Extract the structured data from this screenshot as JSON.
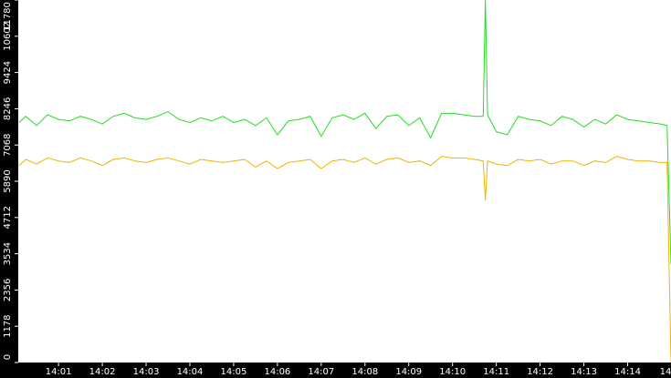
{
  "chart_data": {
    "type": "line",
    "x": [
      0.1,
      0.25,
      0.5,
      0.75,
      1,
      1.25,
      1.5,
      1.75,
      2,
      2.25,
      2.5,
      2.75,
      3,
      3.25,
      3.5,
      3.75,
      4,
      4.25,
      4.5,
      4.75,
      5,
      5.25,
      5.5,
      5.75,
      6,
      6.25,
      6.5,
      6.75,
      7,
      7.25,
      7.5,
      7.75,
      8,
      8.25,
      8.5,
      8.75,
      9,
      9.25,
      9.5,
      9.75,
      10,
      10.25,
      10.5,
      10.7,
      10.75,
      10.8,
      11,
      11.25,
      11.5,
      11.75,
      12,
      12.25,
      12.5,
      12.75,
      13,
      13.25,
      13.5,
      13.75,
      14,
      14.25,
      14.5,
      14.75,
      14.9,
      14.99
    ],
    "xlim": [
      0.08,
      14.99
    ],
    "xticks": [
      {
        "value": 1,
        "label": "14:01"
      },
      {
        "value": 2,
        "label": "14:02"
      },
      {
        "value": 3,
        "label": "14:03"
      },
      {
        "value": 4,
        "label": "14:04"
      },
      {
        "value": 5,
        "label": "14:05"
      },
      {
        "value": 6,
        "label": "14:06"
      },
      {
        "value": 7,
        "label": "14:07"
      },
      {
        "value": 8,
        "label": "14:08"
      },
      {
        "value": 9,
        "label": "14:09"
      },
      {
        "value": 10,
        "label": "14:10"
      },
      {
        "value": 11,
        "label": "14:11"
      },
      {
        "value": 12,
        "label": "14:12"
      },
      {
        "value": 13,
        "label": "14:13"
      },
      {
        "value": 14,
        "label": "14:14"
      },
      {
        "value": 15,
        "label": "14"
      }
    ],
    "ylim": [
      0,
      11780
    ],
    "yticks": [
      0,
      1178,
      2356,
      3534,
      4712,
      5890,
      7068,
      8246,
      9424,
      10602,
      11780
    ],
    "series": [
      {
        "color": "#22dd22",
        "values": [
          7800,
          8000,
          7700,
          8050,
          7900,
          7850,
          8000,
          7900,
          7750,
          8000,
          8100,
          7950,
          7900,
          8000,
          8150,
          7900,
          7800,
          7950,
          7850,
          8000,
          7800,
          7900,
          7700,
          7950,
          7400,
          7850,
          7900,
          8000,
          7350,
          7950,
          8050,
          7900,
          8100,
          7600,
          8000,
          8050,
          7700,
          7950,
          7300,
          8100,
          8100,
          8050,
          8000,
          8000,
          11780,
          8050,
          7500,
          7400,
          8000,
          7900,
          7850,
          7700,
          8000,
          7900,
          7650,
          7900,
          7750,
          8050,
          7900,
          7850,
          7800,
          7750,
          7700,
          3200
        ]
      },
      {
        "color": "#f0b400",
        "values": [
          6400,
          6600,
          6450,
          6650,
          6550,
          6500,
          6650,
          6550,
          6400,
          6600,
          6650,
          6550,
          6500,
          6600,
          6650,
          6550,
          6450,
          6600,
          6550,
          6500,
          6550,
          6600,
          6350,
          6550,
          6300,
          6500,
          6550,
          6600,
          6300,
          6550,
          6600,
          6500,
          6650,
          6450,
          6600,
          6650,
          6500,
          6550,
          6400,
          6700,
          6650,
          6650,
          6600,
          6550,
          5270,
          6550,
          6450,
          6400,
          6600,
          6550,
          6600,
          6450,
          6550,
          6550,
          6400,
          6550,
          6500,
          6700,
          6600,
          6550,
          6550,
          6500,
          6500,
          0
        ]
      }
    ]
  }
}
